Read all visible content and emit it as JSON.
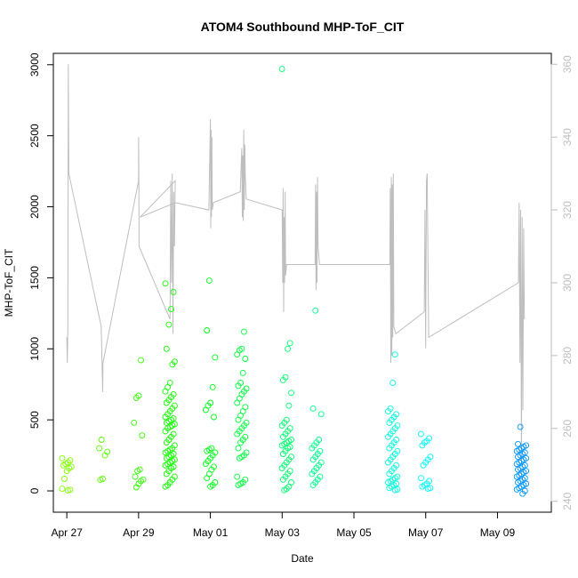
{
  "chart_data": {
    "type": "scatter",
    "title": "ATOM4 Southbound MHP-ToF_CIT",
    "xlabel": "Date",
    "ylabel": "MHP-ToF_CIT",
    "xlim": [
      "2018-04-26T15:00",
      "2018-05-10T12:00"
    ],
    "ylim": [
      -150,
      3080
    ],
    "y2lim": [
      237,
      363
    ],
    "x_ticks": [
      {
        "date": "2018-04-27",
        "label": "Apr 27"
      },
      {
        "date": "2018-04-29",
        "label": "Apr 29"
      },
      {
        "date": "2018-05-01",
        "label": "May 01"
      },
      {
        "date": "2018-05-03",
        "label": "May 03"
      },
      {
        "date": "2018-05-05",
        "label": "May 05"
      },
      {
        "date": "2018-05-07",
        "label": "May 07"
      },
      {
        "date": "2018-05-09",
        "label": "May 09"
      }
    ],
    "y_ticks": [
      0,
      500,
      1000,
      1500,
      2000,
      2500,
      3000
    ],
    "y2_ticks": [
      240,
      260,
      280,
      300,
      320,
      340,
      360
    ],
    "grid": false,
    "legend": "none",
    "series_colors": {
      "points": "color gradient from #80FF00 (start) through #00FFB0 to #0090FF (end)",
      "line": "#bebebe"
    },
    "point_clusters": [
      {
        "t": "2018-04-27T00:00",
        "values": [
          230,
          215,
          200,
          190,
          180,
          170,
          160,
          140,
          85,
          15,
          8,
          3
        ]
      },
      {
        "t": "2018-04-28T00:00",
        "values": [
          360,
          300,
          275,
          250,
          85,
          78
        ]
      },
      {
        "t": "2018-04-29T00:00",
        "values": [
          920,
          670,
          655,
          480,
          390,
          150,
          140,
          100,
          80,
          70,
          50,
          25
        ]
      },
      {
        "t": "2018-04-29T21:00",
        "values": [
          1460,
          1400,
          1280,
          1170,
          1000,
          910,
          890,
          760,
          730,
          700,
          680,
          660,
          640,
          620,
          600,
          580,
          560,
          540,
          520,
          510,
          500,
          490,
          480,
          470,
          460,
          450,
          440,
          420,
          400,
          380,
          360,
          340,
          320,
          300,
          290,
          280,
          270,
          260,
          250,
          240,
          230,
          220,
          210,
          200,
          190,
          180,
          170,
          160,
          140,
          120,
          100,
          80,
          60,
          40,
          30
        ]
      },
      {
        "t": "2018-05-01T00:00",
        "values": [
          1480,
          1130,
          940,
          730,
          620,
          600,
          570,
          520,
          300,
          290,
          280,
          270,
          250,
          230,
          210,
          190,
          170,
          150,
          120,
          90,
          60,
          40,
          30
        ]
      },
      {
        "t": "2018-05-01T21:00",
        "values": [
          1120,
          1000,
          990,
          960,
          930,
          830,
          760,
          740,
          720,
          700,
          680,
          650,
          620,
          590,
          560,
          530,
          500,
          480,
          460,
          440,
          420,
          400,
          380,
          360,
          340,
          300,
          270,
          250,
          240,
          230,
          100,
          80,
          60,
          50,
          40
        ]
      },
      {
        "t": "2018-05-03T03:00",
        "values": [
          2970,
          1040,
          1000,
          800,
          780,
          690,
          600,
          500,
          480,
          460,
          440,
          420,
          400,
          380,
          360,
          350,
          340,
          330,
          320,
          310,
          300,
          280,
          260,
          240,
          220,
          200,
          180,
          160,
          140,
          120,
          100,
          80,
          60,
          30,
          15,
          5
        ]
      },
      {
        "t": "2018-05-03T23:00",
        "values": [
          1270,
          580,
          540,
          360,
          340,
          320,
          300,
          280,
          260,
          240,
          220,
          200,
          180,
          160,
          140,
          120,
          100,
          80,
          60,
          40
        ]
      },
      {
        "t": "2018-05-06T02:00",
        "values": [
          960,
          760,
          580,
          560,
          540,
          520,
          500,
          480,
          460,
          440,
          420,
          400,
          380,
          360,
          340,
          320,
          300,
          280,
          260,
          240,
          220,
          200,
          180,
          160,
          140,
          120,
          100,
          90,
          80,
          70,
          60,
          50,
          40,
          30,
          20,
          10,
          5
        ]
      },
      {
        "t": "2018-05-07T00:00",
        "values": [
          400,
          370,
          350,
          340,
          320,
          240,
          220,
          200,
          180,
          90,
          70,
          50,
          40,
          30,
          20,
          15
        ]
      },
      {
        "t": "2018-05-09T16:00",
        "values": [
          450,
          330,
          320,
          310,
          300,
          290,
          280,
          270,
          260,
          250,
          240,
          230,
          220,
          210,
          200,
          190,
          180,
          170,
          160,
          150,
          140,
          130,
          120,
          110,
          100,
          90,
          80,
          70,
          60,
          50,
          40,
          30,
          20,
          10,
          0,
          -20
        ]
      }
    ],
    "line_series": {
      "axis": "right",
      "points": [
        [
          "2018-04-27T00:00",
          285
        ],
        [
          "2018-04-27T00:20",
          278
        ],
        [
          "2018-04-27T00:40",
          288
        ],
        [
          "2018-04-27T01:00",
          360
        ],
        [
          "2018-04-27T01:20",
          330
        ],
        [
          "2018-04-27T23:00",
          288
        ],
        [
          "2018-04-28T00:00",
          270
        ],
        [
          "2018-04-28T00:10",
          278
        ],
        [
          "2018-04-28T23:59",
          328
        ],
        [
          "2018-04-29T00:00",
          340
        ],
        [
          "2018-04-29T00:10",
          330
        ],
        [
          "2018-04-29T00:20",
          310
        ],
        [
          "2018-04-29T21:00",
          290
        ],
        [
          "2018-04-29T21:30",
          328
        ],
        [
          "2018-04-29T22:00",
          300
        ],
        [
          "2018-04-29T22:30",
          330
        ],
        [
          "2018-04-29T23:00",
          286
        ],
        [
          "2018-04-29T23:30",
          325
        ],
        [
          "2018-04-30T00:00",
          310
        ],
        [
          "2018-04-30T00:30",
          328
        ],
        [
          "2018-04-29T01:00",
          318
        ],
        [
          "2018-04-30T00:30",
          322
        ],
        [
          "2018-04-30T23:00",
          320
        ],
        [
          "2018-05-01T00:00",
          345
        ],
        [
          "2018-05-01T00:15",
          315
        ],
        [
          "2018-05-01T00:30",
          342
        ],
        [
          "2018-05-01T00:45",
          318
        ],
        [
          "2018-05-01T01:00",
          340
        ],
        [
          "2018-05-01T01:15",
          320
        ],
        [
          "2018-05-01T02:00",
          322
        ],
        [
          "2018-05-01T20:00",
          325
        ],
        [
          "2018-05-01T21:00",
          337
        ],
        [
          "2018-05-01T21:20",
          318
        ],
        [
          "2018-05-01T21:40",
          335
        ],
        [
          "2018-05-01T22:00",
          317
        ],
        [
          "2018-05-01T22:20",
          342
        ],
        [
          "2018-05-01T22:40",
          320
        ],
        [
          "2018-05-01T23:00",
          338
        ],
        [
          "2018-05-01T23:20",
          330
        ],
        [
          "2018-05-02T00:00",
          323
        ],
        [
          "2018-05-03T00:00",
          320
        ],
        [
          "2018-05-03T00:20",
          300
        ],
        [
          "2018-05-03T00:40",
          326
        ],
        [
          "2018-05-03T01:00",
          292
        ],
        [
          "2018-05-03T01:20",
          318
        ],
        [
          "2018-05-03T01:40",
          300
        ],
        [
          "2018-05-03T02:00",
          325
        ],
        [
          "2018-05-03T02:20",
          302
        ],
        [
          "2018-05-03T03:00",
          305
        ],
        [
          "2018-05-03T22:00",
          305
        ],
        [
          "2018-05-03T22:20",
          327
        ],
        [
          "2018-05-03T22:40",
          298
        ],
        [
          "2018-05-03T23:00",
          325
        ],
        [
          "2018-05-03T23:20",
          300
        ],
        [
          "2018-05-03T23:40",
          329
        ],
        [
          "2018-05-04T00:00",
          310
        ],
        [
          "2018-05-04T01:00",
          305
        ],
        [
          "2018-05-06T00:00",
          305
        ],
        [
          "2018-05-06T00:20",
          326
        ],
        [
          "2018-05-06T00:40",
          278
        ],
        [
          "2018-05-06T01:00",
          329
        ],
        [
          "2018-05-06T01:20",
          280
        ],
        [
          "2018-05-06T01:40",
          327
        ],
        [
          "2018-05-06T02:00",
          285
        ],
        [
          "2018-05-06T02:20",
          330
        ],
        [
          "2018-05-06T02:40",
          288
        ],
        [
          "2018-05-06T04:00",
          286
        ],
        [
          "2018-05-06T23:00",
          292
        ],
        [
          "2018-05-06T23:30",
          320
        ],
        [
          "2018-05-07T00:00",
          282
        ],
        [
          "2018-05-07T00:30",
          328
        ],
        [
          "2018-05-07T01:00",
          330
        ],
        [
          "2018-05-07T02:00",
          285
        ],
        [
          "2018-05-09T14:00",
          300
        ],
        [
          "2018-05-09T14:30",
          322
        ],
        [
          "2018-05-09T15:00",
          278
        ],
        [
          "2018-05-09T15:30",
          320
        ],
        [
          "2018-05-09T16:00",
          250
        ],
        [
          "2018-05-09T16:30",
          318
        ],
        [
          "2018-05-09T17:00",
          265
        ],
        [
          "2018-05-09T17:30",
          315
        ],
        [
          "2018-05-09T18:00",
          290
        ]
      ]
    }
  }
}
